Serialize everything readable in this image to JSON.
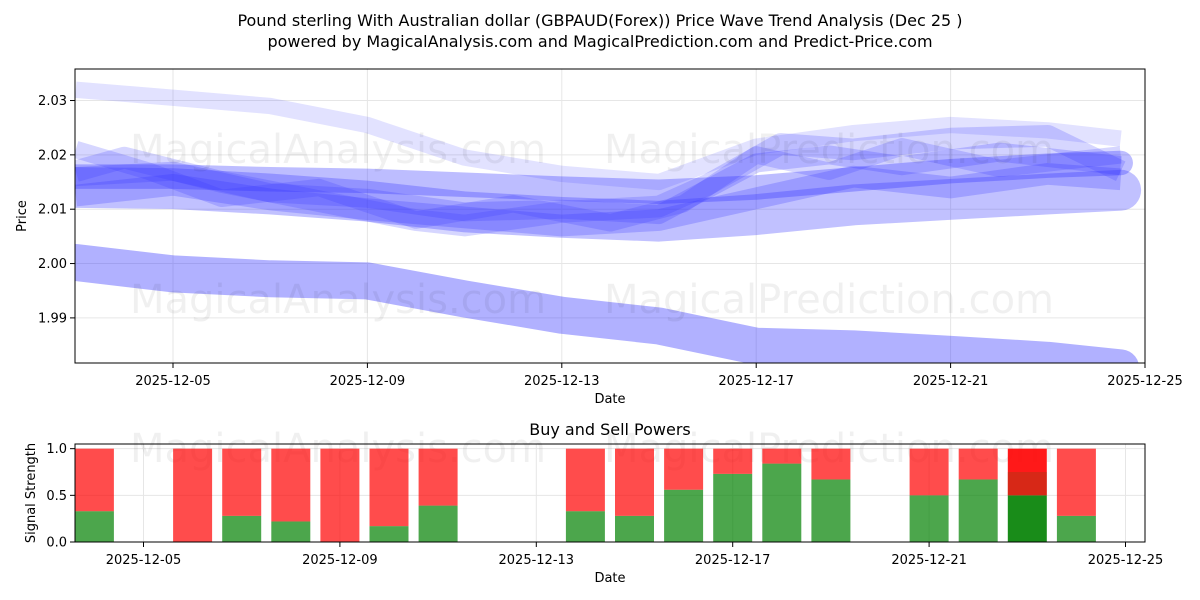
{
  "title_line1": "Pound sterling With Australian dollar (GBPAUD(Forex)) Price Wave Trend Analysis (Dec 25 )",
  "title_line2": "powered by MagicalAnalysis.com and MagicalPrediction.com and Predict-Price.com",
  "watermark": {
    "left": "MagicalAnalysis.com",
    "right": "MagicalPrediction.com"
  },
  "colors": {
    "wave": "#3333ff",
    "buy": "#008000",
    "sell": "#ff0000",
    "grid": "#e6e6e6"
  },
  "chart_data": [
    {
      "type": "area",
      "name": "price-wave-chart",
      "xlabel": "Date",
      "ylabel": "Price",
      "x_ticks": [
        "2025-12-05",
        "2025-12-09",
        "2025-12-13",
        "2025-12-17",
        "2025-12-21",
        "2025-12-25"
      ],
      "y_ticks": [
        "1.99",
        "2.00",
        "2.01",
        "2.02",
        "2.03"
      ],
      "ylim": [
        1.9817,
        2.0358
      ],
      "grid": true,
      "series": [
        {
          "name": "lower-wave",
          "x": [
            "2025-12-03",
            "2025-12-05",
            "2025-12-07",
            "2025-12-09",
            "2025-12-11",
            "2025-12-13",
            "2025-12-15",
            "2025-12-17",
            "2025-12-19",
            "2025-12-21",
            "2025-12-23",
            "2025-12-24.5"
          ],
          "values": [
            2.0002,
            1.9981,
            1.9972,
            1.9968,
            1.9935,
            1.9905,
            1.9885,
            1.9848,
            1.9843,
            1.9833,
            1.9822,
            1.9808
          ],
          "width": 0.0068
        },
        {
          "name": "upper-wave",
          "x": [
            "2025-12-03",
            "2025-12-05",
            "2025-12-07",
            "2025-12-09",
            "2025-12-11",
            "2025-12-13",
            "2025-12-15",
            "2025-12-17",
            "2025-12-19",
            "2025-12-21",
            "2025-12-23",
            "2025-12-24.5"
          ],
          "values": [
            2.016,
            2.016,
            2.0155,
            2.0152,
            2.0145,
            2.0138,
            2.0132,
            2.014,
            2.0155,
            2.017,
            2.018,
            2.0185
          ],
          "width": 0.0045
        },
        {
          "name": "mid-wave",
          "x": [
            "2025-12-03",
            "2025-12-05",
            "2025-12-07",
            "2025-12-09",
            "2025-12-11",
            "2025-12-13",
            "2025-12-15",
            "2025-12-17",
            "2025-12-19",
            "2025-12-21",
            "2025-12-23",
            "2025-12-24.5"
          ],
          "values": [
            2.014,
            2.0138,
            2.0128,
            2.0115,
            2.0095,
            2.0085,
            2.0078,
            2.009,
            2.0108,
            2.0118,
            2.0128,
            2.0135
          ],
          "width": 0.0075
        },
        {
          "name": "fast-wave-a",
          "x": [
            "2025-12-03",
            "2025-12-04",
            "2025-12-06",
            "2025-12-08",
            "2025-12-10",
            "2025-12-11",
            "2025-12-13",
            "2025-12-15",
            "2025-12-16",
            "2025-12-17.5",
            "2025-12-19",
            "2025-12-21",
            "2025-12-23",
            "2025-12-24.5"
          ],
          "values": [
            2.017,
            2.0195,
            2.015,
            2.0115,
            2.008,
            2.007,
            2.0095,
            2.0105,
            2.0145,
            2.022,
            2.021,
            2.023,
            2.0235,
            2.017
          ],
          "width": 0.004
        },
        {
          "name": "fast-wave-b",
          "x": [
            "2025-12-03",
            "2025-12-05",
            "2025-12-07",
            "2025-12-09",
            "2025-12-11",
            "2025-12-13",
            "2025-12-15",
            "2025-12-17",
            "2025-12-18.5",
            "2025-12-20",
            "2025-12-22",
            "2025-12-24.5"
          ],
          "values": [
            2.016,
            2.017,
            2.013,
            2.012,
            2.0095,
            2.01,
            2.009,
            2.0185,
            2.02,
            2.018,
            2.0205,
            2.018
          ],
          "width": 0.0035
        },
        {
          "name": "fast-wave-c",
          "x": [
            "2025-12-03",
            "2025-12-04.5",
            "2025-12-06",
            "2025-12-08",
            "2025-12-10",
            "2025-12-12",
            "2025-12-14",
            "2025-12-15.5",
            "2025-12-17",
            "2025-12-18.5",
            "2025-12-20",
            "2025-12-22",
            "2025-12-24.5"
          ],
          "values": [
            2.021,
            2.017,
            2.012,
            2.014,
            2.008,
            2.011,
            2.0075,
            2.011,
            2.02,
            2.017,
            2.0215,
            2.0175,
            2.02
          ],
          "width": 0.0032
        },
        {
          "name": "fast-wave-d",
          "x": [
            "2025-12-03",
            "2025-12-05",
            "2025-12-07",
            "2025-12-09",
            "2025-12-11",
            "2025-12-13",
            "2025-12-15",
            "2025-12-17",
            "2025-12-19",
            "2025-12-21",
            "2025-12-23",
            "2025-12-24.5"
          ],
          "values": [
            2.0125,
            2.0145,
            2.0118,
            2.01,
            2.0085,
            2.007,
            2.008,
            2.012,
            2.016,
            2.014,
            2.0165,
            2.0155
          ],
          "width": 0.004
        },
        {
          "name": "long-wave",
          "x": [
            "2025-12-03",
            "2025-12-05",
            "2025-12-07",
            "2025-12-09",
            "2025-12-11",
            "2025-12-13",
            "2025-12-15",
            "2025-12-17",
            "2025-12-19",
            "2025-12-21",
            "2025-12-23",
            "2025-12-24.5"
          ],
          "values": [
            2.032,
            2.0305,
            2.029,
            2.0255,
            2.0195,
            2.0165,
            2.015,
            2.0215,
            2.024,
            2.0255,
            2.0245,
            2.023
          ],
          "width": 0.003
        }
      ]
    },
    {
      "type": "bar",
      "name": "buy-sell-power-chart",
      "title": "Buy and Sell Powers",
      "xlabel": "Date",
      "ylabel": "Signal Strength",
      "x_ticks": [
        "2025-12-05",
        "2025-12-09",
        "2025-12-13",
        "2025-12-17",
        "2025-12-21",
        "2025-12-25"
      ],
      "y_ticks": [
        "0.0",
        "0.5",
        "1.0"
      ],
      "ylim": [
        0,
        1.05
      ],
      "grid": true,
      "categories": [
        "2025-12-04",
        "2025-12-06",
        "2025-12-07",
        "2025-12-08",
        "2025-12-09",
        "2025-12-10",
        "2025-12-11",
        "2025-12-14",
        "2025-12-15",
        "2025-12-16",
        "2025-12-17",
        "2025-12-18",
        "2025-12-19",
        "2025-12-21",
        "2025-12-22",
        "2025-12-23",
        "2025-12-24"
      ],
      "series": [
        {
          "name": "Buy",
          "values": [
            0.33,
            0.0,
            0.28,
            0.22,
            0.0,
            0.17,
            0.39,
            0.33,
            0.28,
            0.56,
            0.73,
            0.84,
            0.67,
            0.5,
            0.67,
            0.5,
            0.28
          ]
        },
        {
          "name": "Sell",
          "values": [
            0.67,
            1.0,
            0.72,
            0.78,
            1.0,
            0.83,
            0.61,
            0.67,
            0.72,
            0.44,
            0.27,
            0.16,
            0.33,
            0.5,
            0.33,
            0.5,
            0.72
          ]
        }
      ],
      "highlighted": "2025-12-23"
    }
  ]
}
